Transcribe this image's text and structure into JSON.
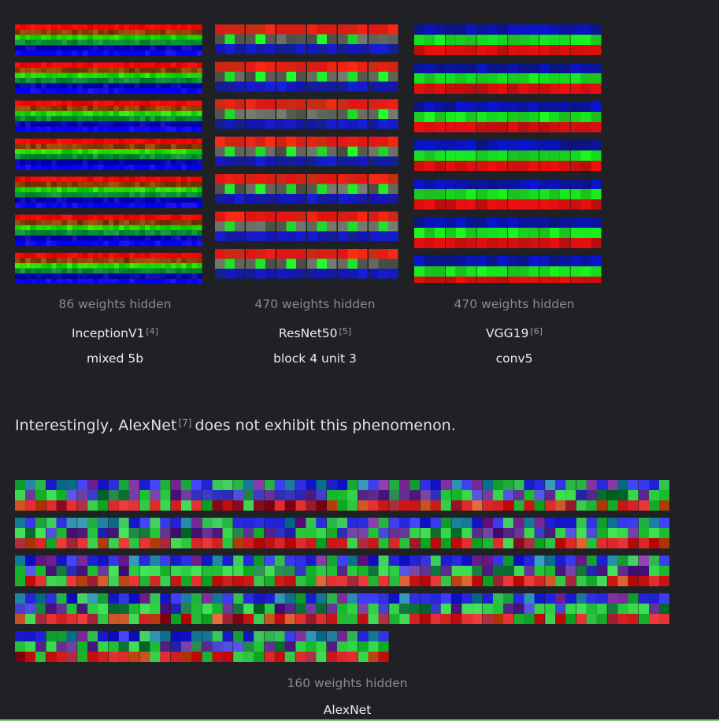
{
  "panels": [
    {
      "model": "InceptionV1",
      "ref": "[4]",
      "layer": "mixed 5b",
      "hidden": "86 weights hidden"
    },
    {
      "model": "ResNet50",
      "ref": "[5]",
      "layer": "block 4 unit 3",
      "hidden": "470 weights hidden"
    },
    {
      "model": "VGG19",
      "ref": "[6]",
      "layer": "conv5",
      "hidden": "470 weights hidden"
    }
  ],
  "sentence": {
    "before": "Interestingly, AlexNet",
    "ref": "[7]",
    "after": "does not exhibit this phenomenon."
  },
  "alexnet": {
    "model": "AlexNet",
    "hidden": "160 weights hidden"
  }
}
